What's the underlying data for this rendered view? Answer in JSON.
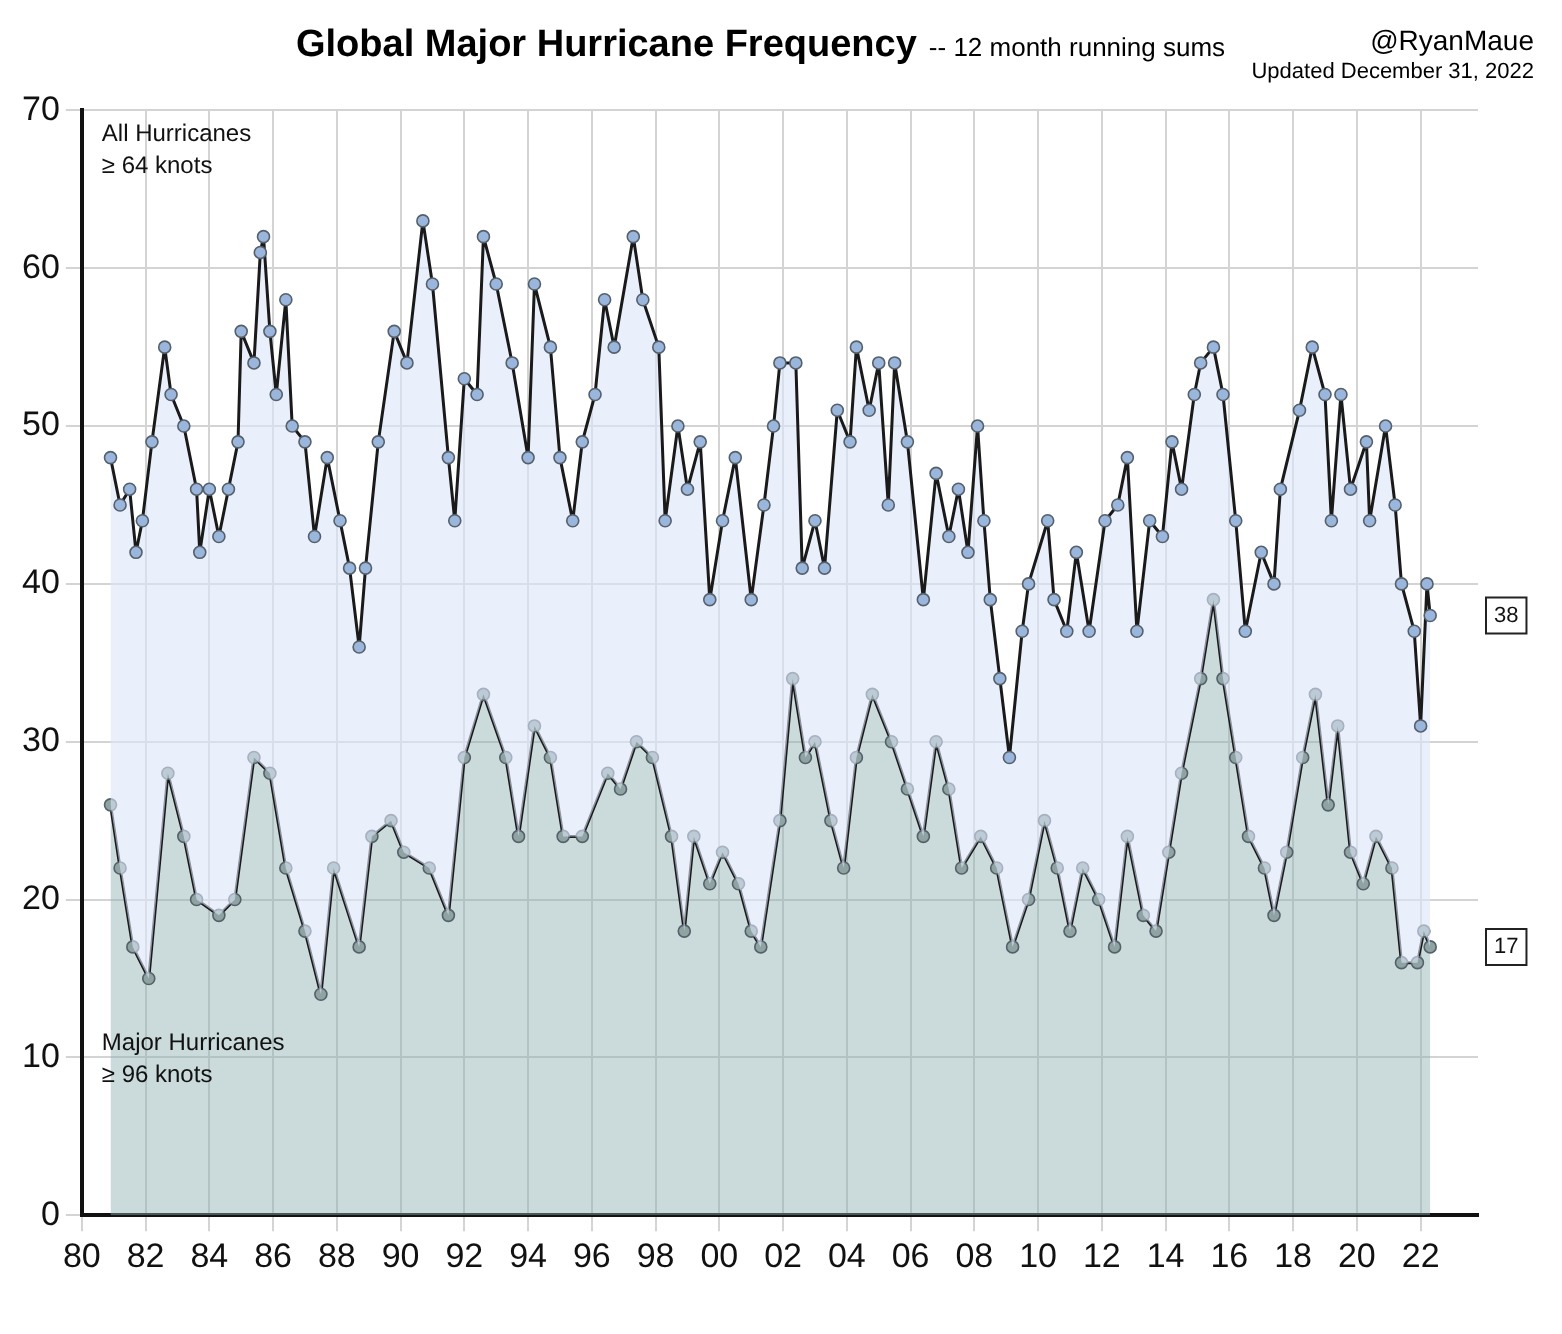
{
  "chart_data": {
    "type": "area",
    "title": "Global Major Hurricane Frequency",
    "subtitle": "-- 12 month running sums",
    "annotations": [
      "@RyanMaue",
      "Updated December 31, 2022",
      "38",
      "17"
    ],
    "xlim": [
      1980,
      2023.8
    ],
    "ylim": [
      0,
      70
    ],
    "yticks": [
      0,
      10,
      20,
      30,
      40,
      50,
      60,
      70
    ],
    "xticks": [
      {
        "value": 1980,
        "label": "80"
      },
      {
        "value": 1982,
        "label": "82"
      },
      {
        "value": 1984,
        "label": "84"
      },
      {
        "value": 1986,
        "label": "86"
      },
      {
        "value": 1988,
        "label": "88"
      },
      {
        "value": 1990,
        "label": "90"
      },
      {
        "value": 1992,
        "label": "92"
      },
      {
        "value": 1994,
        "label": "94"
      },
      {
        "value": 1996,
        "label": "96"
      },
      {
        "value": 1998,
        "label": "98"
      },
      {
        "value": 2000,
        "label": "00"
      },
      {
        "value": 2002,
        "label": "02"
      },
      {
        "value": 2004,
        "label": "04"
      },
      {
        "value": 2006,
        "label": "06"
      },
      {
        "value": 2008,
        "label": "08"
      },
      {
        "value": 2010,
        "label": "10"
      },
      {
        "value": 2012,
        "label": "12"
      },
      {
        "value": 2014,
        "label": "14"
      },
      {
        "value": 2016,
        "label": "16"
      },
      {
        "value": 2018,
        "label": "18"
      },
      {
        "value": 2020,
        "label": "20"
      },
      {
        "value": 2022,
        "label": "22"
      }
    ],
    "grid": true,
    "marker": "circle",
    "line_style": "solid",
    "series": [
      {
        "name": "All Hurricanes ≥ 64 knots",
        "color": "#9ab6dc",
        "x": [
          1980.9,
          1981.2,
          1981.5,
          1981.7,
          1981.9,
          1982.2,
          1982.6,
          1982.8,
          1983.2,
          1983.6,
          1983.7,
          1984.0,
          1984.3,
          1984.6,
          1984.9,
          1985.0,
          1985.4,
          1985.6,
          1985.7,
          1985.9,
          1986.1,
          1986.4,
          1986.6,
          1987.0,
          1987.3,
          1987.7,
          1988.1,
          1988.4,
          1988.7,
          1988.9,
          1989.3,
          1989.8,
          1990.2,
          1990.7,
          1991.0,
          1991.5,
          1991.7,
          1992.0,
          1992.4,
          1992.6,
          1993.0,
          1993.5,
          1994.0,
          1994.2,
          1994.7,
          1995.0,
          1995.4,
          1995.7,
          1996.1,
          1996.4,
          1996.7,
          1997.3,
          1997.6,
          1998.1,
          1998.3,
          1998.7,
          1999.0,
          1999.4,
          1999.7,
          2000.1,
          2000.5,
          2001.0,
          2001.4,
          2001.7,
          2001.9,
          2002.4,
          2002.6,
          2003.0,
          2003.3,
          2003.7,
          2004.1,
          2004.3,
          2004.7,
          2005.0,
          2005.3,
          2005.5,
          2005.9,
          2006.4,
          2006.8,
          2007.2,
          2007.5,
          2007.8,
          2008.1,
          2008.3,
          2008.5,
          2008.8,
          2009.1,
          2009.5,
          2009.7,
          2010.3,
          2010.5,
          2010.9,
          2011.2,
          2011.6,
          2012.1,
          2012.5,
          2012.8,
          2013.1,
          2013.5,
          2013.9,
          2014.2,
          2014.5,
          2014.9,
          2015.1,
          2015.5,
          2015.8,
          2016.2,
          2016.5,
          2017.0,
          2017.4,
          2017.6,
          2018.2,
          2018.6,
          2019.0,
          2019.2,
          2019.5,
          2019.8,
          2020.3,
          2020.4,
          2020.9,
          2021.2,
          2021.4,
          2021.8,
          2022.0,
          2022.2,
          2022.3
        ],
        "values": [
          48,
          45,
          46,
          42,
          44,
          49,
          55,
          52,
          50,
          46,
          42,
          46,
          43,
          46,
          49,
          56,
          54,
          61,
          62,
          56,
          52,
          58,
          50,
          49,
          43,
          48,
          44,
          41,
          36,
          41,
          49,
          56,
          54,
          63,
          59,
          48,
          44,
          53,
          52,
          62,
          59,
          54,
          48,
          59,
          55,
          48,
          44,
          49,
          52,
          58,
          55,
          62,
          58,
          55,
          44,
          50,
          46,
          49,
          39,
          44,
          48,
          39,
          45,
          50,
          54,
          54,
          41,
          44,
          41,
          51,
          49,
          55,
          51,
          54,
          45,
          54,
          49,
          39,
          47,
          43,
          46,
          42,
          50,
          44,
          39,
          34,
          29,
          37,
          40,
          44,
          39,
          37,
          42,
          37,
          44,
          45,
          48,
          37,
          44,
          43,
          49,
          46,
          52,
          54,
          55,
          52,
          44,
          37,
          42,
          40,
          46,
          51,
          55,
          52,
          44,
          52,
          46,
          49,
          44,
          50,
          45,
          40,
          37,
          31,
          40,
          38
        ]
      },
      {
        "name": "Major Hurricanes ≥ 96 knots",
        "color": "#8fa3a3",
        "x": [
          1980.9,
          1981.2,
          1981.6,
          1982.1,
          1982.7,
          1983.2,
          1983.6,
          1984.3,
          1984.8,
          1985.4,
          1985.9,
          1986.4,
          1987.0,
          1987.5,
          1987.9,
          1988.7,
          1989.1,
          1989.7,
          1990.1,
          1990.9,
          1991.5,
          1992.0,
          1992.6,
          1993.3,
          1993.7,
          1994.2,
          1994.7,
          1995.1,
          1995.7,
          1996.5,
          1996.9,
          1997.4,
          1997.9,
          1998.5,
          1998.9,
          1999.2,
          1999.7,
          2000.1,
          2000.6,
          2001.0,
          2001.3,
          2001.9,
          2002.3,
          2002.7,
          2003.0,
          2003.5,
          2003.9,
          2004.3,
          2004.8,
          2005.4,
          2005.9,
          2006.4,
          2006.8,
          2007.2,
          2007.6,
          2008.2,
          2008.7,
          2009.2,
          2009.7,
          2010.2,
          2010.6,
          2011.0,
          2011.4,
          2011.9,
          2012.4,
          2012.8,
          2013.3,
          2013.7,
          2014.1,
          2014.5,
          2015.1,
          2015.5,
          2015.8,
          2016.2,
          2016.6,
          2017.1,
          2017.4,
          2017.8,
          2018.3,
          2018.7,
          2019.1,
          2019.4,
          2019.8,
          2020.2,
          2020.6,
          2021.1,
          2021.4,
          2021.9,
          2022.1,
          2022.3
        ],
        "values": [
          26,
          22,
          17,
          15,
          28,
          24,
          20,
          19,
          20,
          29,
          28,
          22,
          18,
          14,
          22,
          17,
          24,
          25,
          23,
          22,
          19,
          29,
          33,
          29,
          24,
          31,
          29,
          24,
          24,
          28,
          27,
          30,
          29,
          24,
          18,
          24,
          21,
          23,
          21,
          18,
          17,
          25,
          34,
          29,
          30,
          25,
          22,
          29,
          33,
          30,
          27,
          24,
          30,
          27,
          22,
          24,
          22,
          17,
          20,
          25,
          22,
          18,
          22,
          20,
          17,
          24,
          19,
          18,
          23,
          28,
          34,
          39,
          34,
          29,
          24,
          22,
          19,
          23,
          29,
          33,
          26,
          31,
          23,
          21,
          24,
          22,
          16,
          16,
          18,
          17
        ]
      }
    ]
  }
}
